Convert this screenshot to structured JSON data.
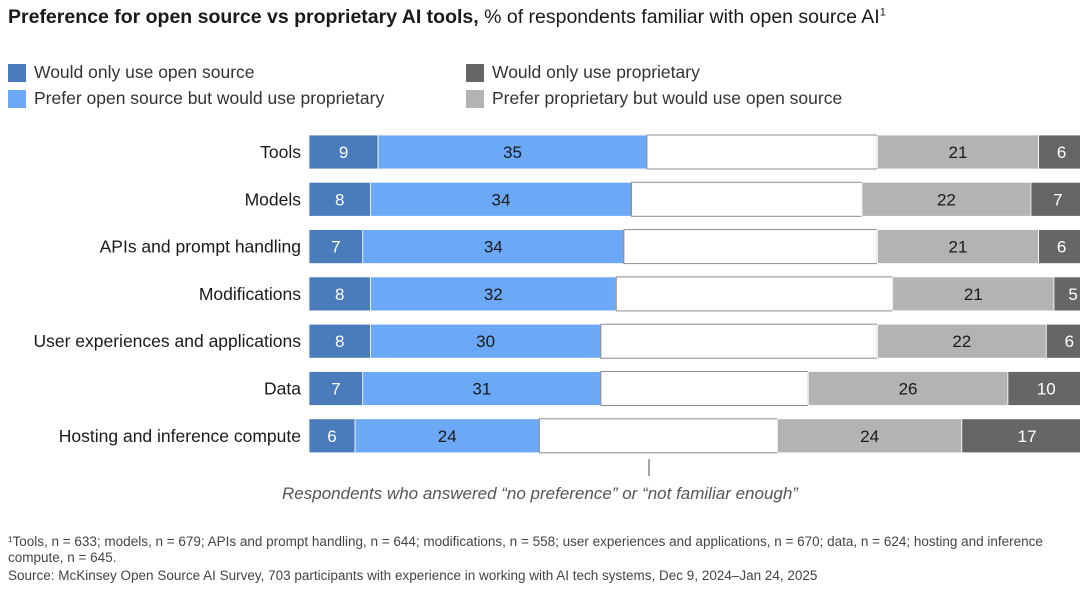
{
  "title": {
    "bold": "Preference for open source vs proprietary AI tools,",
    "rest": " % of respondents familiar with open source AI",
    "sup": "1"
  },
  "note": "Respondents who answered “no preference” or “not familiar enough”",
  "footnotes": [
    "¹Tools, n = 633; models, n = 679; APIs and prompt handling, n = 644; modifications, n = 558; user experiences and applications, n = 670; data, n = 624; hosting and inference compute, n = 645.",
    "Source: McKinsey Open Source AI Survey, 703 participants with experience in working with AI tech systems, Dec 9, 2024–Jan 24, 2025"
  ],
  "colors": {
    "open_only": "#4a7bbb",
    "prefer_open": "#6ba8f5",
    "no_pref": "#ffffff",
    "prefer_prop": "#b3b3b3",
    "prop_only": "#666666"
  },
  "chart_data": {
    "type": "bar",
    "orientation": "horizontal",
    "stacked": true,
    "xlim": [
      0,
      100
    ],
    "legend_position": "top",
    "categories": [
      "Tools",
      "Models",
      "APIs and prompt handling",
      "Modifications",
      "User experiences and applications",
      "Data",
      "Hosting and inference compute"
    ],
    "series": [
      {
        "name": "Would only use open source",
        "color": "#4a7bbb",
        "values": [
          9,
          8,
          7,
          8,
          8,
          7,
          6
        ]
      },
      {
        "name": "Prefer open source but would use proprietary",
        "color": "#6ba8f5",
        "values": [
          35,
          34,
          34,
          32,
          30,
          31,
          24
        ]
      },
      {
        "name": "",
        "color": "#ffffff",
        "values": [
          30,
          30,
          33,
          36,
          36,
          27,
          31
        ]
      },
      {
        "name": "Prefer proprietary but would use open source",
        "color": "#b3b3b3",
        "values": [
          21,
          22,
          21,
          21,
          22,
          26,
          24
        ]
      },
      {
        "name": "Would only use proprietary",
        "color": "#666666",
        "values": [
          6,
          7,
          6,
          5,
          6,
          10,
          17
        ]
      }
    ],
    "labeled_series": [
      true,
      true,
      false,
      true,
      true
    ]
  }
}
